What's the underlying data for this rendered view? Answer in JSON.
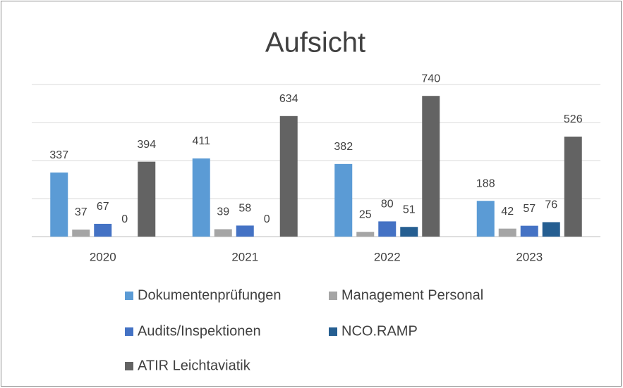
{
  "chart_data": {
    "type": "bar",
    "title": "Aufsicht",
    "categories": [
      "2020",
      "2021",
      "2022",
      "2023"
    ],
    "series": [
      {
        "name": "Dokumentenprüfungen",
        "color": "#5b9bd5",
        "values": [
          337,
          411,
          382,
          188
        ]
      },
      {
        "name": "Management Personal",
        "color": "#a5a5a5",
        "values": [
          37,
          39,
          25,
          42
        ]
      },
      {
        "name": "Audits/Inspektionen",
        "color": "#4472c4",
        "values": [
          67,
          58,
          80,
          57
        ]
      },
      {
        "name": "NCO.RAMP",
        "color": "#255e91",
        "values": [
          0,
          0,
          51,
          76
        ]
      },
      {
        "name": "ATIR Leichtaviatik",
        "color": "#636363",
        "values": [
          394,
          634,
          740,
          526
        ]
      }
    ],
    "ylim": [
      0,
      800
    ],
    "yticks": [
      0,
      200,
      400,
      600,
      800
    ],
    "grid": true,
    "legend": "bottom"
  }
}
